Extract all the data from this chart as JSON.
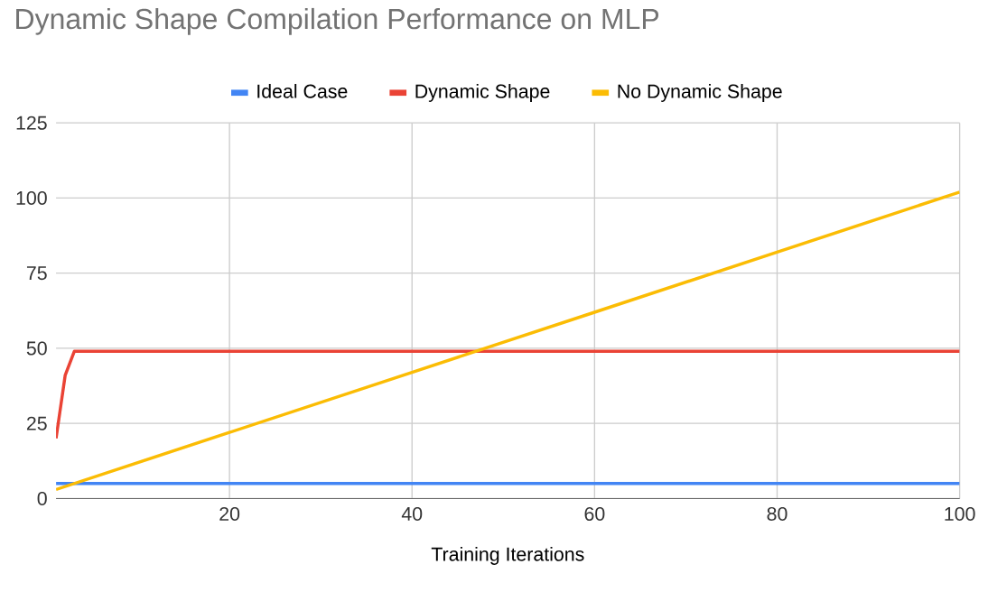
{
  "chart_data": {
    "type": "line",
    "title": "Dynamic Shape Compilation Performance on MLP",
    "xlabel": "Training Iterations",
    "xlim": [
      1,
      100
    ],
    "xticks": [
      20,
      40,
      60,
      80,
      100
    ],
    "ylim": [
      0,
      125
    ],
    "yticks": [
      0,
      25,
      50,
      75,
      100,
      125
    ],
    "grid": true,
    "legend": "top",
    "line_style": "solid",
    "series": [
      {
        "name": "Ideal Case",
        "color": "#4285f4",
        "x": [
          1,
          100
        ],
        "values": [
          5,
          5
        ]
      },
      {
        "name": "Dynamic Shape",
        "color": "#ea4335",
        "x": [
          1,
          2,
          3,
          100
        ],
        "values": [
          20,
          41,
          49,
          49
        ]
      },
      {
        "name": "No Dynamic Shape",
        "color": "#fbbc04",
        "x": [
          1,
          20,
          40,
          60,
          80,
          100
        ],
        "values": [
          3,
          22,
          42,
          62,
          82,
          102
        ]
      }
    ]
  }
}
